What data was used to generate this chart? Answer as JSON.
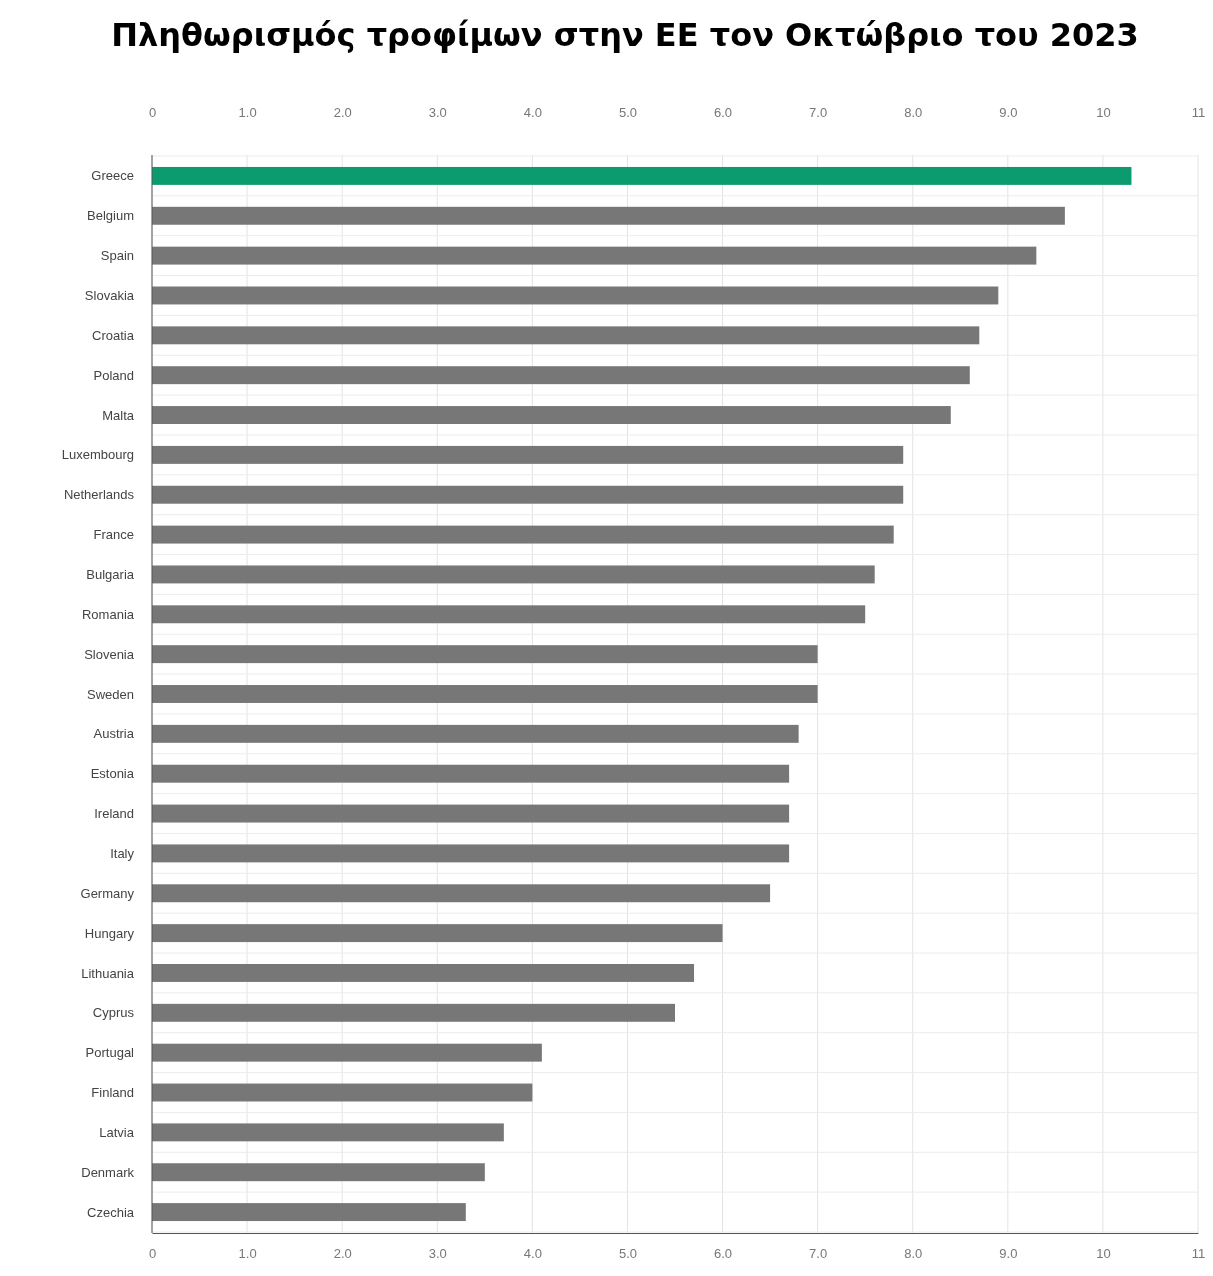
{
  "chart_data": {
    "type": "bar",
    "orientation": "horizontal",
    "title": "Πληθωρισμός τροφίμων στην ΕΕ τον Οκτώβριο του 2023",
    "categories": [
      "Greece",
      "Belgium",
      "Spain",
      "Slovakia",
      "Croatia",
      "Poland",
      "Malta",
      "Luxembourg",
      "Netherlands",
      "France",
      "Bulgaria",
      "Romania",
      "Slovenia",
      "Sweden",
      "Austria",
      "Estonia",
      "Ireland",
      "Italy",
      "Germany",
      "Hungary",
      "Lithuania",
      "Cyprus",
      "Portugal",
      "Finland",
      "Latvia",
      "Denmark",
      "Czechia"
    ],
    "values": [
      10.3,
      9.6,
      9.3,
      8.9,
      8.7,
      8.6,
      8.4,
      7.9,
      7.9,
      7.8,
      7.6,
      7.5,
      7.0,
      7.0,
      6.8,
      6.7,
      6.7,
      6.7,
      6.5,
      6.0,
      5.7,
      5.5,
      4.1,
      4.0,
      3.7,
      3.5,
      3.3
    ],
    "colors": [
      "#0b9b6f",
      "#777777",
      "#777777",
      "#777777",
      "#777777",
      "#777777",
      "#777777",
      "#777777",
      "#777777",
      "#777777",
      "#777777",
      "#777777",
      "#777777",
      "#777777",
      "#777777",
      "#777777",
      "#777777",
      "#777777",
      "#777777",
      "#777777",
      "#777777",
      "#777777",
      "#777777",
      "#777777",
      "#777777",
      "#777777",
      "#777777"
    ],
    "xlim": [
      0,
      11
    ],
    "xticks": [
      0,
      {
        "value": 1,
        "label": "1.0"
      },
      {
        "value": 2,
        "label": "2.0"
      },
      {
        "value": 3,
        "label": "3.0"
      },
      {
        "value": 4,
        "label": "4.0"
      },
      {
        "value": 5,
        "label": "5.0"
      },
      {
        "value": 6,
        "label": "6.0"
      },
      {
        "value": 7,
        "label": "7.0"
      },
      {
        "value": 8,
        "label": "8.0"
      },
      {
        "value": 9,
        "label": "9.0"
      },
      10,
      11
    ],
    "x2lim": [
      0,
      11
    ],
    "x2ticks": [
      0,
      {
        "value": 1,
        "label": "1.0"
      },
      {
        "value": 2,
        "label": "2.0"
      },
      {
        "value": 3,
        "label": "3.0"
      },
      {
        "value": 4,
        "label": "4.0"
      },
      {
        "value": 5,
        "label": "5.0"
      },
      {
        "value": 6,
        "label": "6.0"
      },
      {
        "value": 7,
        "label": "7.0"
      },
      {
        "value": 8,
        "label": "8.0"
      },
      {
        "value": 9,
        "label": "9.0"
      },
      10,
      11
    ],
    "grid": true
  }
}
